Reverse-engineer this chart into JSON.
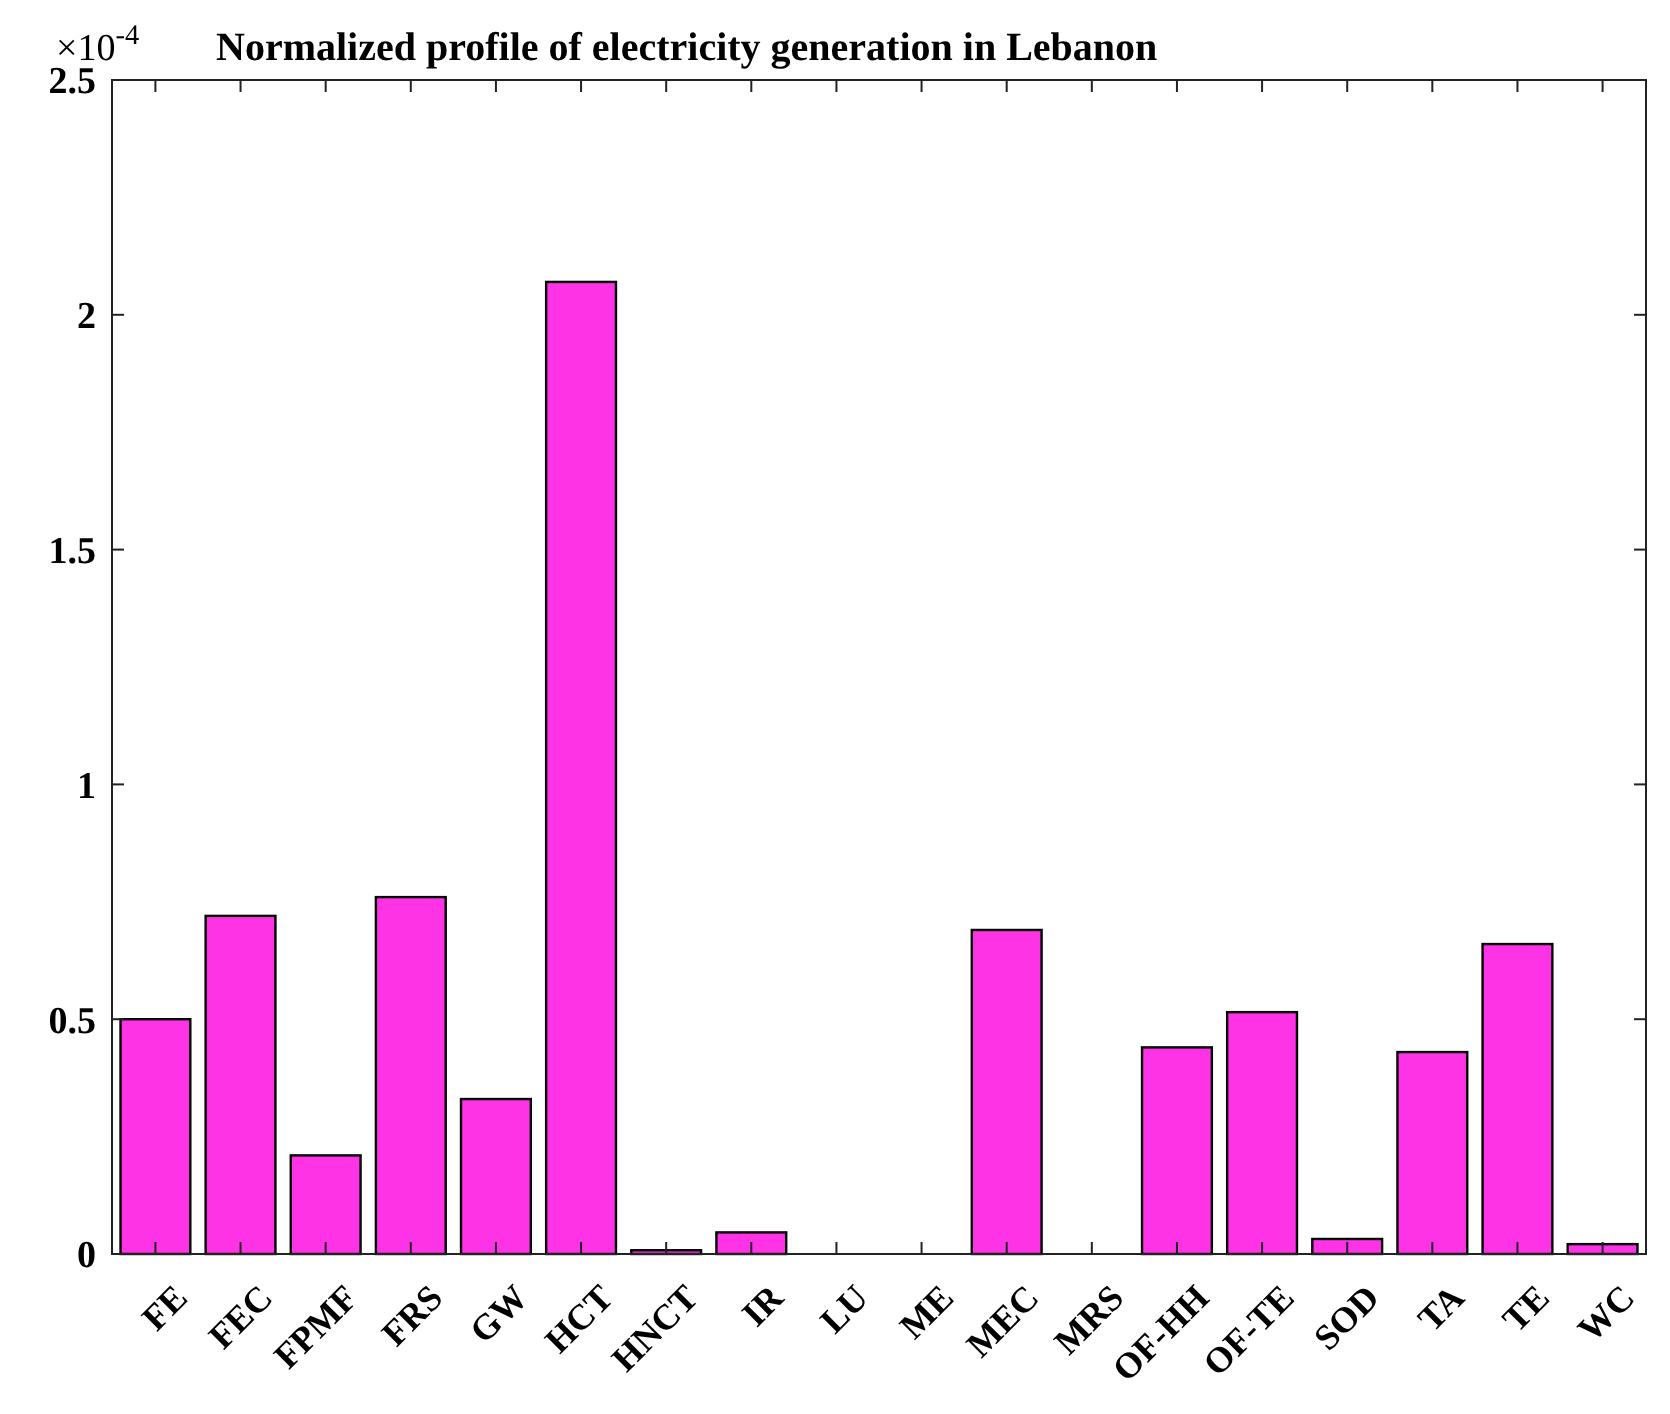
{
  "chart_data": {
    "type": "bar",
    "title": "Normalized profile of electricity generation in Lebanon",
    "annotations": [
      "×10$^{-4}$"
    ],
    "categories": [
      "FE",
      "FEC",
      "FPMF",
      "FRS",
      "GW",
      "HCT",
      "HNCT",
      "IR",
      "LU",
      "ME",
      "MEC",
      "MRS",
      "OF-HH",
      "OF-TE",
      "SOD",
      "TA",
      "TE",
      "WC"
    ],
    "values": [
      0.5,
      0.72,
      0.21,
      0.76,
      0.33,
      2.07,
      0.008,
      0.046,
      0,
      0,
      0.69,
      0,
      0.44,
      0.515,
      0.032,
      0.43,
      0.66,
      0.021
    ],
    "color": "#ff33e6",
    "ylim": [
      0,
      2.5
    ],
    "yticks": [
      0,
      0.5,
      1,
      1.5,
      2,
      2.5
    ],
    "grid": false
  }
}
